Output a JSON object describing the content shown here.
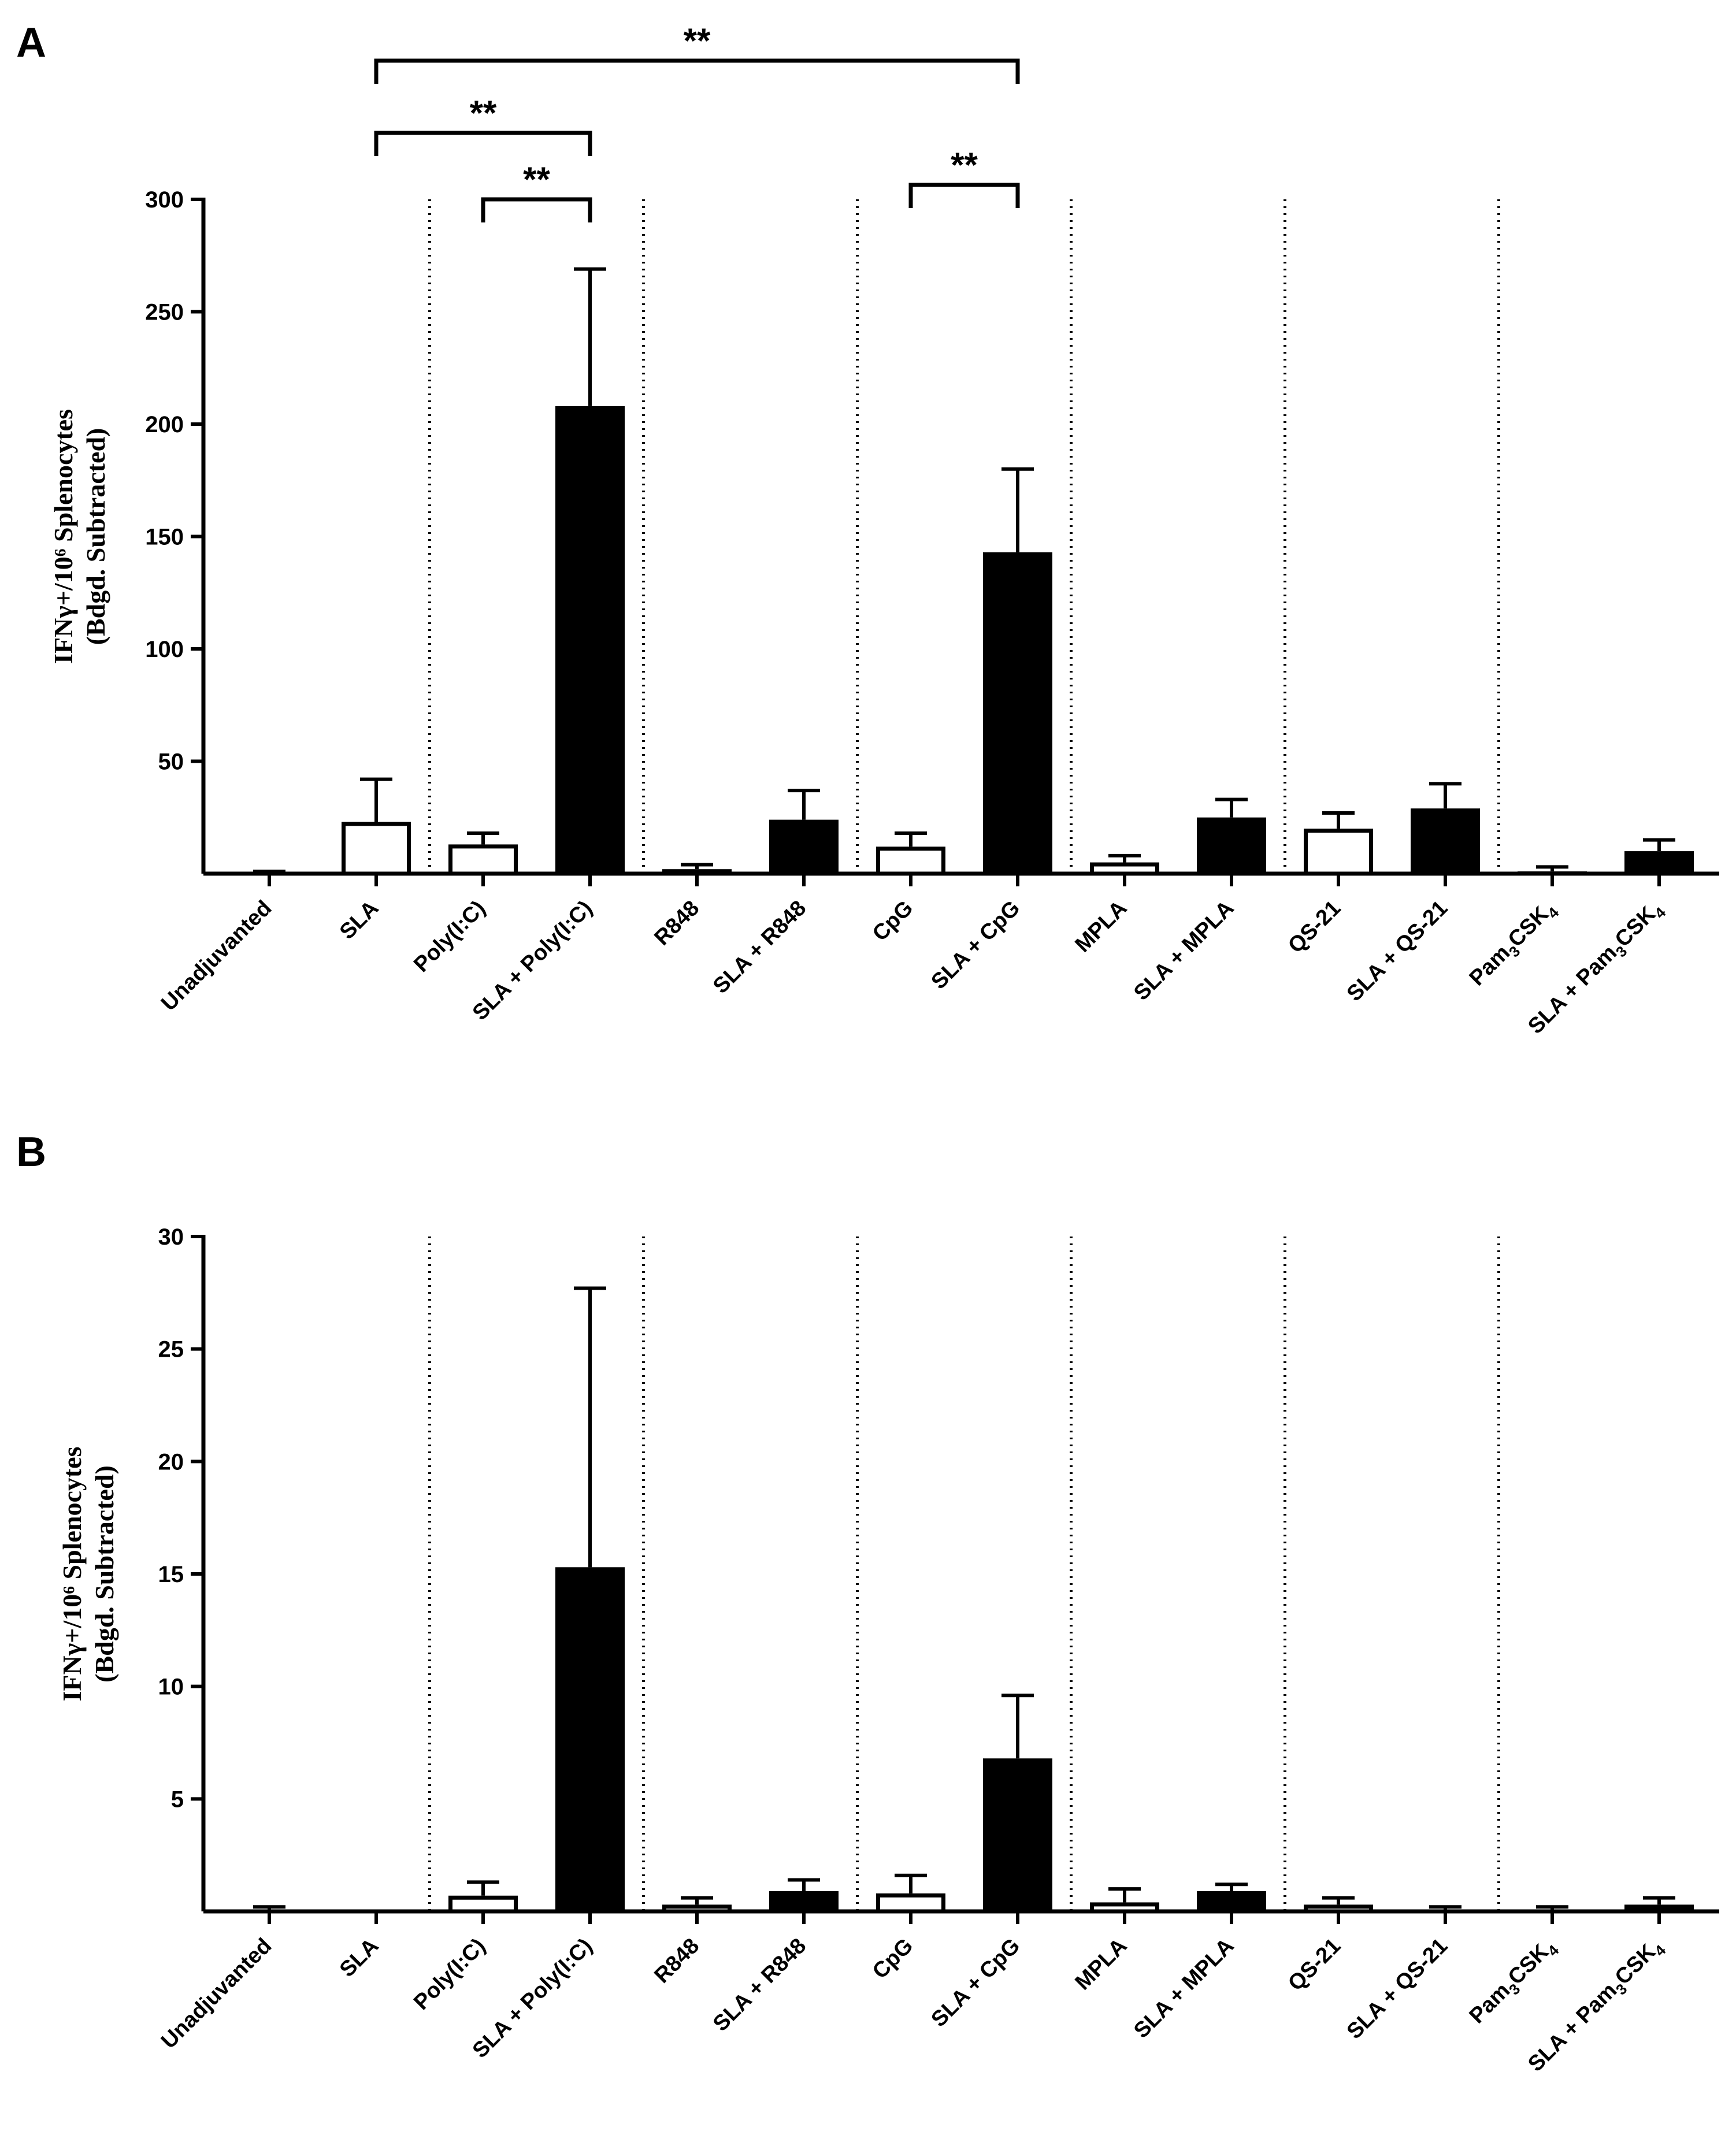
{
  "chart_data": [
    {
      "panel": "A",
      "type": "bar",
      "ylabel_line1": "IFNγ+/10⁶ Splenocytes",
      "ylabel_line2": "(Bdgd.  Subtracted)",
      "ylim": [
        0,
        300
      ],
      "yticks": [
        "50",
        "100",
        "150",
        "200",
        "250",
        "300"
      ],
      "categories": [
        "Unadjuvanted",
        "SLA",
        "Poly(I:C)",
        "SLA + Poly(I:C)",
        "R848",
        "SLA + R848",
        "CpG",
        "SLA + CpG",
        "MPLA",
        "SLA + MPLA",
        "QS-21",
        "SLA + QS-21",
        "Pam3CSK4",
        "SLA + Pam3CSK4"
      ],
      "values": [
        0,
        23,
        13,
        208,
        2,
        24,
        12,
        143,
        5,
        25,
        20,
        29,
        1,
        10
      ],
      "errors": [
        1,
        19,
        5,
        61,
        2,
        13,
        6,
        37,
        3,
        8,
        7,
        11,
        2,
        5
      ],
      "fill": [
        "white",
        "white",
        "white",
        "black",
        "white",
        "black",
        "white",
        "black",
        "white",
        "black",
        "white",
        "black",
        "white",
        "black"
      ],
      "significance": [
        {
          "from": 1,
          "to": 7,
          "label": "**"
        },
        {
          "from": 1,
          "to": 3,
          "label": "**"
        },
        {
          "from": 2,
          "to": 3,
          "label": "**"
        },
        {
          "from": 6,
          "to": 7,
          "label": "**"
        }
      ]
    },
    {
      "panel": "B",
      "type": "bar",
      "ylabel_line1": "IFNγ+/10⁶ Splenocytes",
      "ylabel_line2": "(Bdgd.  Subtracted)",
      "ylim": [
        0,
        30
      ],
      "yticks": [
        "5",
        "10",
        "15",
        "20",
        "25",
        "30"
      ],
      "categories": [
        "Unadjuvanted",
        "SLA",
        "Poly(I:C)",
        "SLA + Poly(I:C)",
        "R848",
        "SLA + R848",
        "CpG",
        "SLA + CpG",
        "MPLA",
        "SLA + MPLA",
        "QS-21",
        "SLA + QS-21",
        "Pam3CSK4",
        "SLA + Pam3CSK4"
      ],
      "values": [
        0,
        0,
        0.7,
        15.3,
        0.3,
        0.9,
        0.8,
        6.8,
        0.4,
        0.9,
        0.3,
        0,
        0,
        0.3
      ],
      "errors": [
        0.2,
        0,
        0.6,
        12.4,
        0.3,
        0.5,
        0.8,
        2.8,
        0.6,
        0.3,
        0.3,
        0.2,
        0.2,
        0.3
      ],
      "fill": [
        "white",
        "white",
        "white",
        "black",
        "white",
        "black",
        "white",
        "black",
        "white",
        "black",
        "white",
        "black",
        "white",
        "black"
      ],
      "significance": []
    }
  ]
}
